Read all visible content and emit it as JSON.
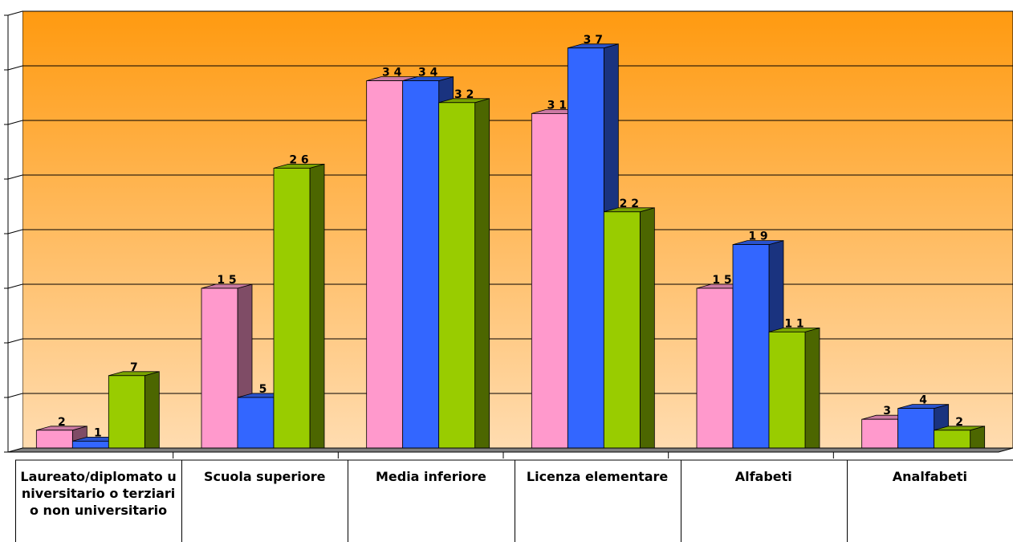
{
  "chart_data": {
    "type": "bar",
    "title": "",
    "xlabel": "",
    "ylabel": "",
    "ylim": [
      0,
      40
    ],
    "grid": true,
    "legend": "none",
    "categories": [
      "Laureato/diplomato universitario o terziario non universitario",
      "Scuola superiore",
      "Media inferiore",
      "Licenza elementare",
      "Alfabeti",
      "Analfabeti"
    ],
    "series": [
      {
        "values": [
          2,
          15,
          34,
          31,
          15,
          3
        ],
        "color": "#ff99cc",
        "side_color": "#7f4c66",
        "top_color": "#cc7aa3"
      },
      {
        "values": [
          1,
          5,
          34,
          37,
          19,
          4
        ],
        "color": "#3366ff",
        "side_color": "#1a337f",
        "top_color": "#2952cc"
      },
      {
        "values": [
          7,
          26,
          32,
          22,
          11,
          2
        ],
        "color": "#99cc00",
        "side_color": "#4c6600",
        "top_color": "#7aa300"
      }
    ],
    "data_labels": [
      [
        "2",
        "1 5",
        "3 4",
        "3 1",
        "1 5",
        "3"
      ],
      [
        "1",
        "5",
        "3 4",
        "3 7",
        "1 9",
        "4"
      ],
      [
        "7",
        "2 6",
        "3 2",
        "2 2",
        "1 1",
        "2"
      ]
    ],
    "background_gradient": [
      "#ff9a10",
      "#ffdcb0"
    ]
  }
}
